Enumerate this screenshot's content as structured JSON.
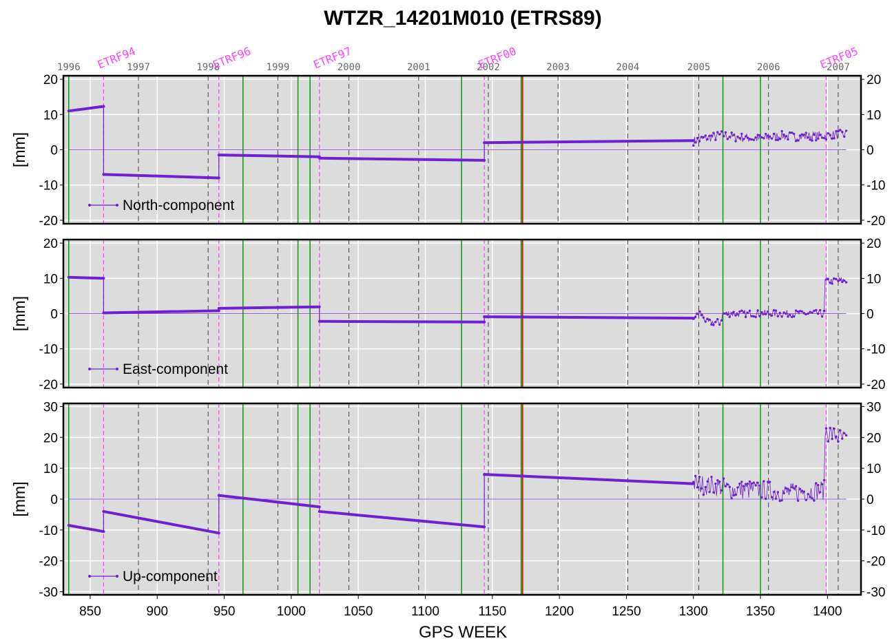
{
  "chart_data": {
    "type": "scatter",
    "title": "WTZR_14201M010 (ETRS89)",
    "xlabel": "GPS WEEK",
    "xlim": [
      830,
      1425
    ],
    "x_ticks": [
      850,
      900,
      950,
      1000,
      1050,
      1100,
      1150,
      1200,
      1250,
      1300,
      1350,
      1400
    ],
    "year_labels": [
      {
        "year": "1996",
        "week": 834
      },
      {
        "year": "1997",
        "week": 886
      },
      {
        "year": "1998",
        "week": 938
      },
      {
        "year": "1999",
        "week": 990
      },
      {
        "year": "2000",
        "week": 1043
      },
      {
        "year": "2001",
        "week": 1095
      },
      {
        "year": "2002",
        "week": 1147
      },
      {
        "year": "2003",
        "week": 1199
      },
      {
        "year": "2004",
        "week": 1251
      },
      {
        "year": "2005",
        "week": 1304
      },
      {
        "year": "2006",
        "week": 1356
      },
      {
        "year": "2007",
        "week": 1408
      }
    ],
    "frame_changes": [
      {
        "label": "ETRF94",
        "week": 860
      },
      {
        "label": "ETRF96",
        "week": 946
      },
      {
        "label": "ETRF97",
        "week": 1021
      },
      {
        "label": "ETRF00",
        "week": 1144
      },
      {
        "label": "ETRF05",
        "week": 1399
      }
    ],
    "equipment_changes": [
      834,
      964,
      1005,
      1014,
      1127,
      1322,
      1350
    ],
    "special_event_week": 1172,
    "series_color": "#7020d0",
    "frame_color": "#ff44ff",
    "equipment_color": "#00a000",
    "event_color": "#d02000",
    "panels": [
      {
        "name": "North-component",
        "ylabel": "[mm]",
        "ylim": [
          -21,
          21
        ],
        "yticks": [
          20,
          10,
          0,
          -10,
          -20
        ],
        "segments": [
          [
            [
              834,
              11
            ],
            [
              860,
              12.3
            ]
          ],
          [
            [
              860,
              -7
            ],
            [
              946,
              -8
            ]
          ],
          [
            [
              946,
              -1.5
            ],
            [
              1021,
              -2
            ]
          ],
          [
            [
              1021,
              -2.4
            ],
            [
              1144,
              -3
            ]
          ],
          [
            [
              1144,
              2
            ],
            [
              1300,
              2.6
            ]
          ]
        ],
        "scatter_x_start": 1300,
        "scatter_x_end": 1414,
        "scatter_base": [
          [
            1300,
            2.5
          ],
          [
            1322,
            4.2
          ],
          [
            1330,
            3.6
          ],
          [
            1350,
            3.1
          ],
          [
            1365,
            4
          ],
          [
            1380,
            3.7
          ],
          [
            1399,
            4.1
          ],
          [
            1414,
            4.4
          ]
        ],
        "scatter_noise": 1.3
      },
      {
        "name": "East-component",
        "ylabel": "[mm]",
        "ylim": [
          -21,
          21
        ],
        "yticks": [
          20,
          10,
          0,
          -10,
          -20
        ],
        "segments": [
          [
            [
              834,
              10.3
            ],
            [
              860,
              10
            ]
          ],
          [
            [
              860,
              0.2
            ],
            [
              946,
              0.8
            ]
          ],
          [
            [
              946,
              1.5
            ],
            [
              1021,
              1.9
            ]
          ],
          [
            [
              1021,
              -2.2
            ],
            [
              1144,
              -2.4
            ]
          ],
          [
            [
              1144,
              -0.9
            ],
            [
              1300,
              -1.3
            ]
          ]
        ],
        "scatter_x_start": 1300,
        "scatter_x_end": 1414,
        "scatter_base": [
          [
            1300,
            -1.3
          ],
          [
            1305,
            0.5
          ],
          [
            1310,
            -2.5
          ],
          [
            1320,
            -2.5
          ],
          [
            1322,
            0
          ],
          [
            1350,
            0
          ],
          [
            1398,
            0
          ],
          [
            1399,
            9.2
          ],
          [
            1414,
            9.5
          ]
        ],
        "scatter_noise": 1.0
      },
      {
        "name": "Up-component",
        "ylabel": "[mm]",
        "ylim": [
          -31,
          31
        ],
        "yticks": [
          30,
          20,
          10,
          0,
          -10,
          -20,
          -30
        ],
        "segments": [
          [
            [
              834,
              -8.5
            ],
            [
              860,
              -10.5
            ]
          ],
          [
            [
              860,
              -4
            ],
            [
              946,
              -11
            ]
          ],
          [
            [
              946,
              1.2
            ],
            [
              1021,
              -2.5
            ]
          ],
          [
            [
              1021,
              -4
            ],
            [
              1144,
              -9
            ]
          ],
          [
            [
              1144,
              8
            ],
            [
              1300,
              5
            ]
          ]
        ],
        "scatter_x_start": 1300,
        "scatter_x_end": 1414,
        "scatter_base": [
          [
            1300,
            5
          ],
          [
            1320,
            4
          ],
          [
            1330,
            3
          ],
          [
            1350,
            3
          ],
          [
            1370,
            2
          ],
          [
            1398,
            3
          ],
          [
            1399,
            22
          ],
          [
            1414,
            19
          ]
        ],
        "scatter_noise": 3.2
      }
    ]
  }
}
